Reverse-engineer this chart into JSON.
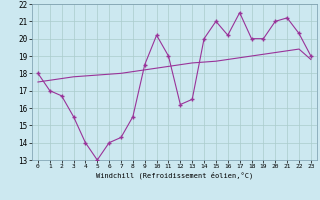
{
  "x": [
    0,
    1,
    2,
    3,
    4,
    5,
    6,
    7,
    8,
    9,
    10,
    11,
    12,
    13,
    14,
    15,
    16,
    17,
    18,
    19,
    20,
    21,
    22,
    23
  ],
  "y_zigzag": [
    18,
    17,
    16.7,
    15.5,
    14,
    13,
    14,
    14.3,
    15.5,
    18.5,
    20.2,
    19.0,
    16.2,
    16.5,
    20.0,
    21.0,
    20.2,
    21.5,
    20.0,
    20.0,
    21.0,
    21.2,
    20.3,
    19.0
  ],
  "y_trend": [
    17.5,
    17.6,
    17.7,
    17.8,
    17.85,
    17.9,
    17.95,
    18.0,
    18.1,
    18.2,
    18.3,
    18.4,
    18.5,
    18.6,
    18.65,
    18.7,
    18.8,
    18.9,
    19.0,
    19.1,
    19.2,
    19.3,
    19.4,
    18.8
  ],
  "line_color": "#993399",
  "bg_color": "#cce8f0",
  "grid_color": "#aacccc",
  "xlabel": "Windchill (Refroidissement éolien,°C)",
  "xlim": [
    -0.5,
    23.5
  ],
  "ylim": [
    13,
    22
  ],
  "yticks": [
    13,
    14,
    15,
    16,
    17,
    18,
    19,
    20,
    21,
    22
  ],
  "xticks": [
    0,
    1,
    2,
    3,
    4,
    5,
    6,
    7,
    8,
    9,
    10,
    11,
    12,
    13,
    14,
    15,
    16,
    17,
    18,
    19,
    20,
    21,
    22,
    23
  ]
}
